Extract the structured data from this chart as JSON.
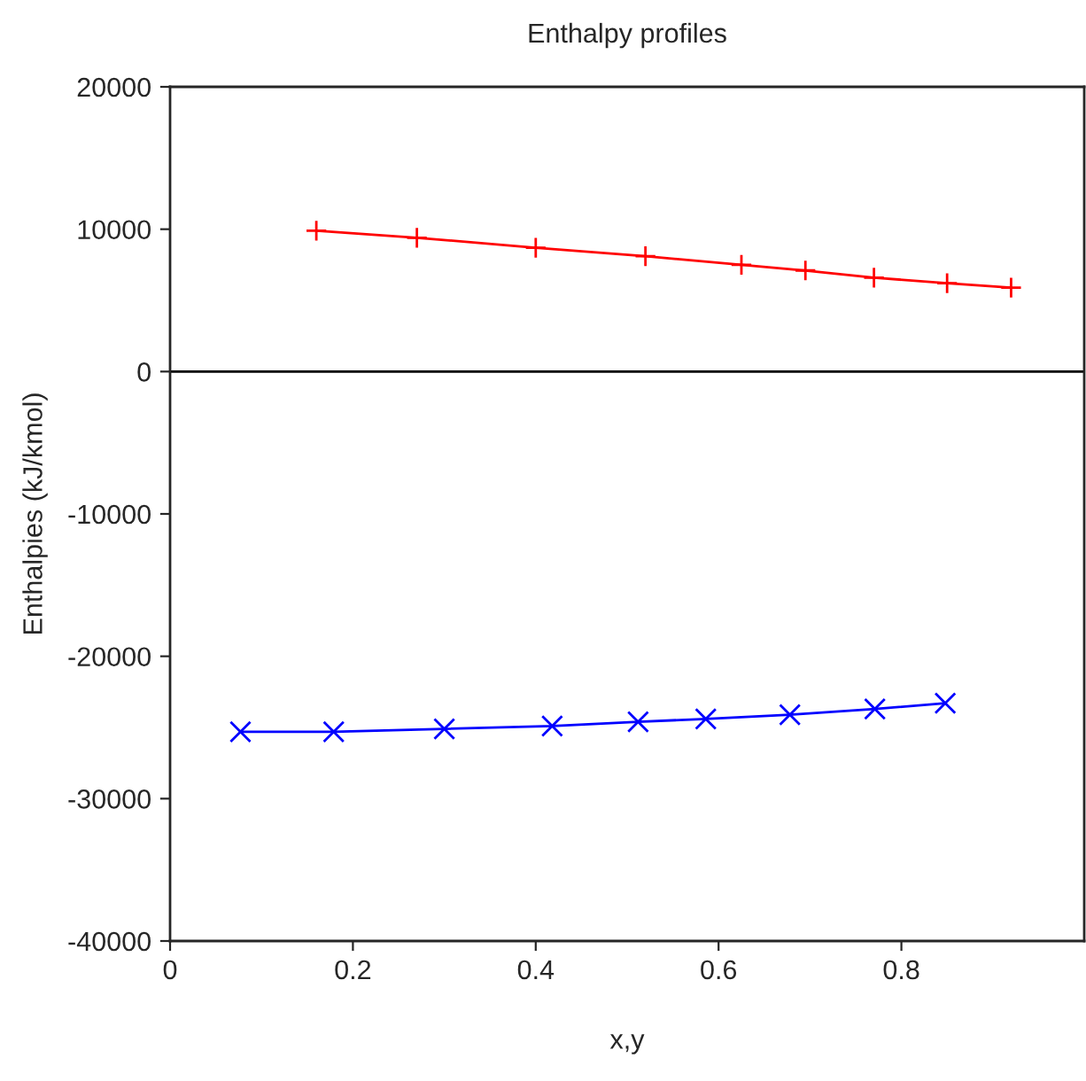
{
  "chart_data": {
    "type": "line",
    "title": "Enthalpy profiles",
    "xlabel": "x,y",
    "ylabel": "Enthalpies (kJ/kmol)",
    "series": [
      {
        "color": "#ff0000",
        "marker": "plus",
        "x": [
          0.16,
          0.27,
          0.4,
          0.52,
          0.625,
          0.695,
          0.77,
          0.85,
          0.92
        ],
        "values": [
          9900,
          9400,
          8700,
          8100,
          7500,
          7100,
          6600,
          6200,
          5900
        ]
      },
      {
        "color": "#0000ff",
        "marker": "cross",
        "x": [
          0.077,
          0.179,
          0.3,
          0.418,
          0.512,
          0.586,
          0.678,
          0.771,
          0.848
        ],
        "values": [
          -25300,
          -25300,
          -25100,
          -24900,
          -24600,
          -24400,
          -24100,
          -23700,
          -23300
        ]
      }
    ],
    "xlim": [
      0,
      1
    ],
    "xticks": [
      0,
      0.2,
      0.4,
      0.6,
      0.8
    ],
    "ylim": [
      -40000,
      20000
    ],
    "yticks": [
      -40000,
      -30000,
      -20000,
      -10000,
      0,
      10000,
      20000
    ],
    "ref_lines": [
      {
        "axis": "y",
        "value": 0,
        "color": "#000000"
      }
    ],
    "grid": false,
    "legend": false
  }
}
